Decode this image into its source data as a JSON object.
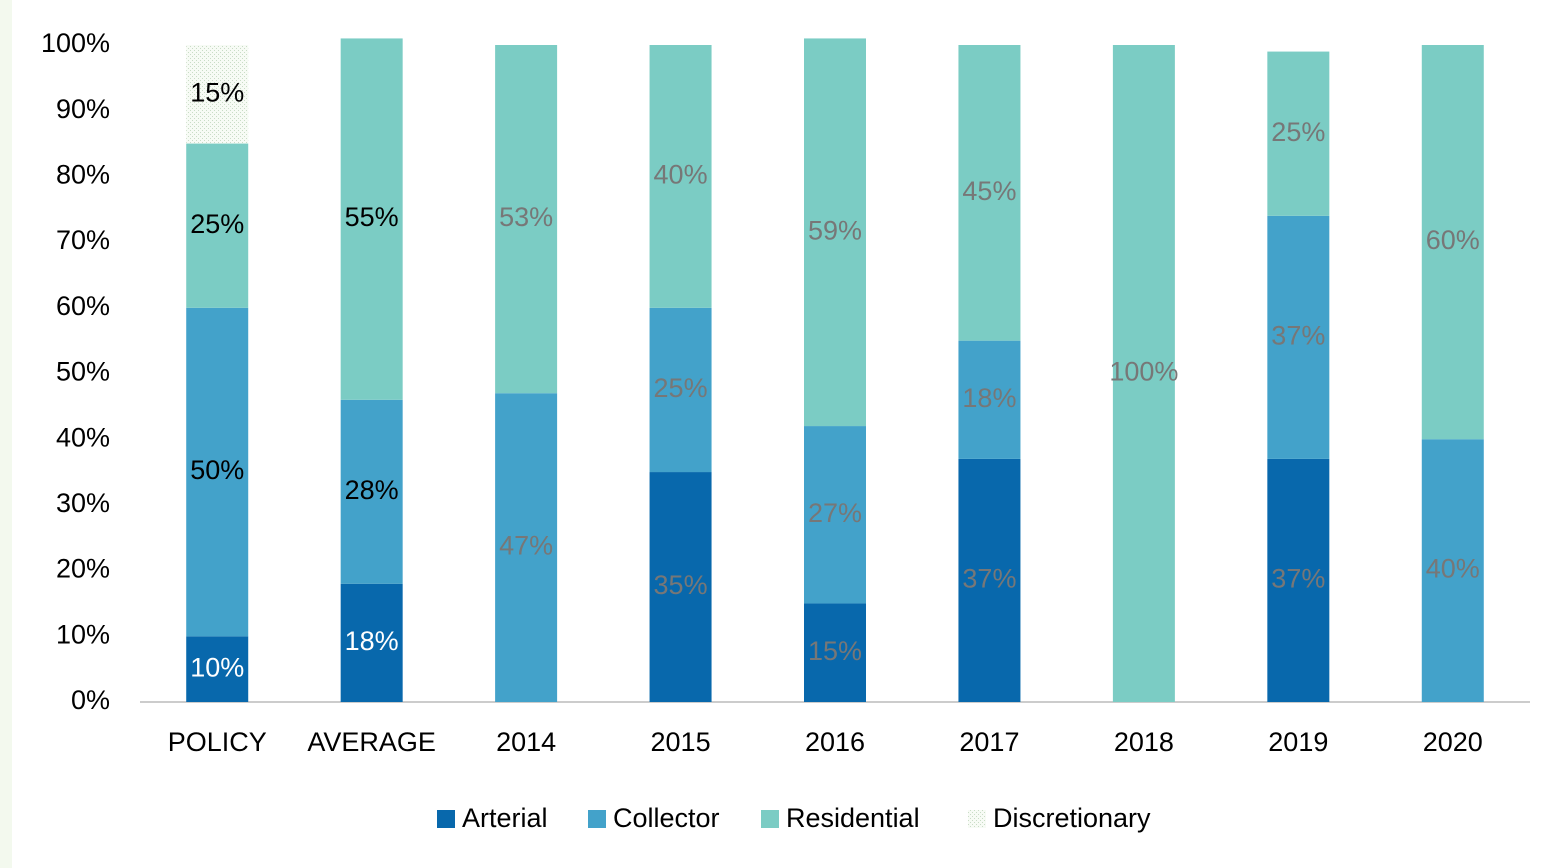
{
  "chart_data": {
    "type": "stacked_bar",
    "categories": [
      "POLICY",
      "AVERAGE",
      "2014",
      "2015",
      "2016",
      "2017",
      "2018",
      "2019",
      "2020"
    ],
    "series": [
      {
        "name": "Arterial",
        "color": "#0868ac",
        "values": [
          10,
          18,
          null,
          35,
          15,
          37,
          null,
          37,
          null
        ],
        "value_labels": [
          "10%",
          "18%",
          null,
          "35%",
          "15%",
          "37%",
          null,
          "37%",
          null
        ]
      },
      {
        "name": "Collector",
        "color": "#43a2ca",
        "values": [
          50,
          28,
          47,
          25,
          27,
          18,
          null,
          37,
          40
        ],
        "value_labels": [
          "50%",
          "28%",
          "47%",
          "25%",
          "27%",
          "18%",
          null,
          "37%",
          "40%"
        ]
      },
      {
        "name": "Residential",
        "color": "#7bccc4",
        "values": [
          25,
          55,
          53,
          40,
          59,
          45,
          100,
          25,
          60
        ],
        "value_labels": [
          "25%",
          "55%",
          "53%",
          "40%",
          "59%",
          "45%",
          "100%",
          "25%",
          "60%"
        ]
      },
      {
        "name": "Discretionary",
        "color": "#e3efe0",
        "values": [
          15,
          null,
          null,
          null,
          null,
          null,
          null,
          null,
          null
        ],
        "value_labels": [
          "15%",
          null,
          null,
          null,
          null,
          null,
          null,
          null,
          null
        ]
      }
    ],
    "ylim": [
      0,
      100
    ],
    "yticks": [
      {
        "value": 0,
        "label": "0%"
      },
      {
        "value": 10,
        "label": "10%"
      },
      {
        "value": 20,
        "label": "20%"
      },
      {
        "value": 30,
        "label": "30%"
      },
      {
        "value": 40,
        "label": "40%"
      },
      {
        "value": 50,
        "label": "50%"
      },
      {
        "value": 60,
        "label": "60%"
      },
      {
        "value": 70,
        "label": "70%"
      },
      {
        "value": 80,
        "label": "80%"
      },
      {
        "value": 90,
        "label": "90%"
      },
      {
        "value": 100,
        "label": "100%"
      }
    ],
    "legend": "bottom"
  }
}
